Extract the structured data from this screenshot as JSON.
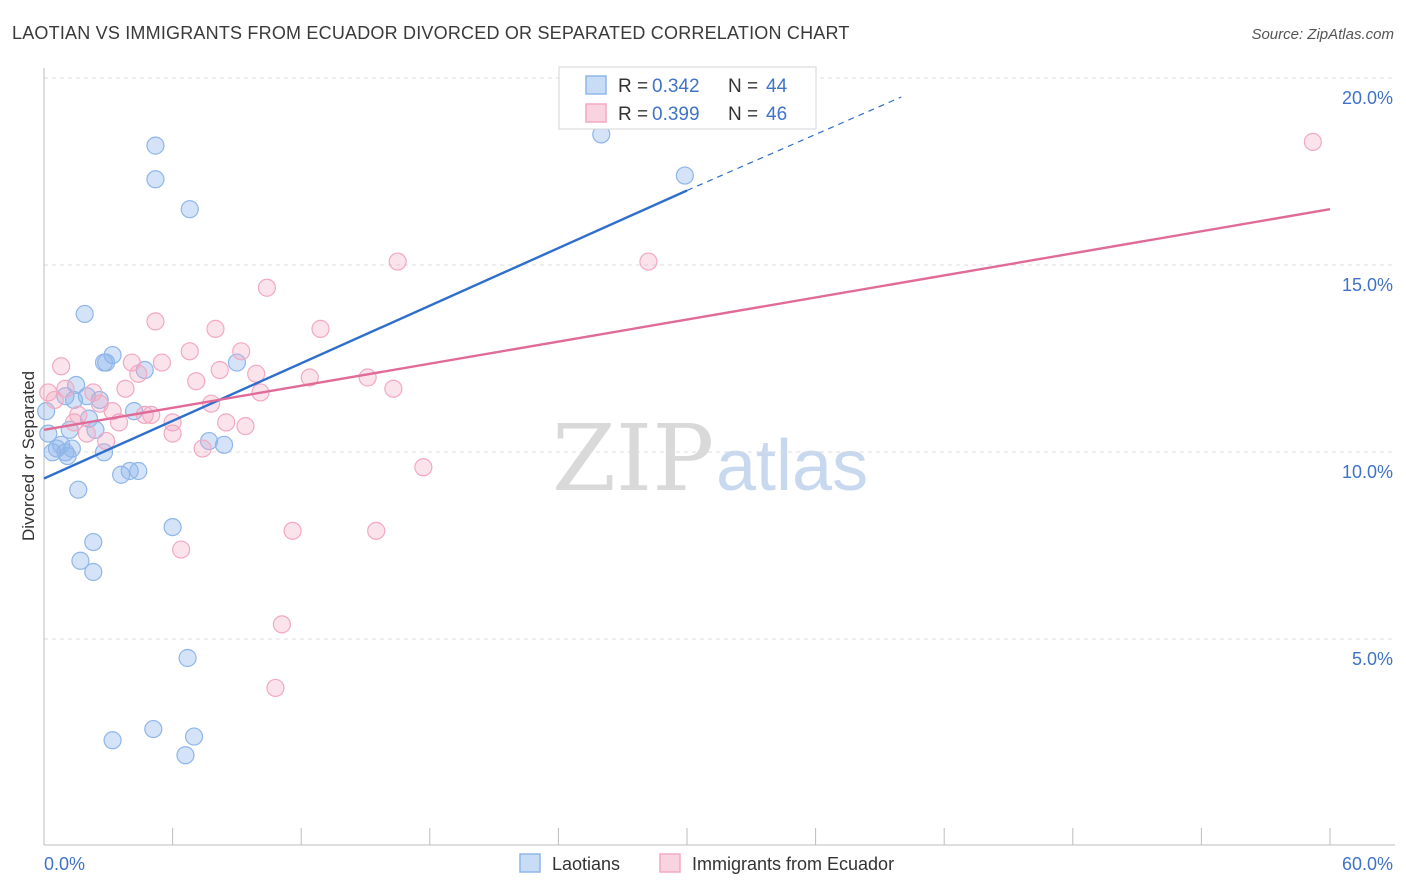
{
  "title": "LAOTIAN VS IMMIGRANTS FROM ECUADOR DIVORCED OR SEPARATED CORRELATION CHART",
  "source": "Source: ZipAtlas.com",
  "watermark": {
    "zip": "ZIP",
    "atlas": "atlas"
  },
  "legend": {
    "rows": [
      {
        "r_label": "R =",
        "r_value": "0.342",
        "n_label": "N =",
        "n_value": "44",
        "color": "#8fb6ea"
      },
      {
        "r_label": "R =",
        "r_value": "0.399",
        "n_label": "N =",
        "n_value": "46",
        "color": "#f2a9c2"
      }
    ]
  },
  "bottom_legend": [
    {
      "label": "Laotians",
      "color": "#8fb6ea"
    },
    {
      "label": "Immigrants from Ecuador",
      "color": "#f2a9c2"
    }
  ],
  "chart_data": {
    "type": "scatter",
    "title": "LAOTIAN VS IMMIGRANTS FROM ECUADOR DIVORCED OR SEPARATED CORRELATION CHART",
    "xlabel": "",
    "ylabel": "Divorced or Separated",
    "xlim": [
      0,
      60
    ],
    "ylim": [
      0,
      20.8
    ],
    "x_tick_labels": [
      "0.0%",
      "60.0%"
    ],
    "y_ticks": [
      5,
      10,
      15,
      20
    ],
    "y_tick_labels": [
      "5.0%",
      "10.0%",
      "15.0%",
      "20.0%"
    ],
    "grid": true,
    "legend_position": "top-center",
    "series": [
      {
        "name": "Laotians",
        "color": "#8fb6ea",
        "trend_color": "#2e6fcc",
        "trend": {
          "x_start": 0,
          "y_start": 9.8,
          "x_end": 30,
          "y_end": 17.5,
          "dash_to_x": 40,
          "dash_to_y": 20.0
        },
        "points": [
          [
            0.2,
            11.0
          ],
          [
            0.4,
            10.5
          ],
          [
            0.6,
            10.6
          ],
          [
            0.8,
            10.7
          ],
          [
            1.0,
            10.5
          ],
          [
            1.1,
            10.4
          ],
          [
            1.0,
            12.0
          ],
          [
            1.2,
            11.1
          ],
          [
            1.3,
            10.6
          ],
          [
            1.4,
            11.9
          ],
          [
            1.5,
            12.3
          ],
          [
            1.6,
            9.5
          ],
          [
            1.7,
            7.6
          ],
          [
            1.9,
            14.2
          ],
          [
            2.0,
            12.0
          ],
          [
            2.1,
            11.4
          ],
          [
            2.3,
            8.1
          ],
          [
            2.3,
            7.3
          ],
          [
            2.4,
            11.1
          ],
          [
            2.6,
            11.9
          ],
          [
            2.8,
            10.5
          ],
          [
            2.8,
            12.9
          ],
          [
            2.9,
            12.9
          ],
          [
            3.2,
            13.1
          ],
          [
            3.6,
            9.9
          ],
          [
            3.2,
            2.8
          ],
          [
            4.0,
            10.0
          ],
          [
            4.2,
            11.6
          ],
          [
            4.4,
            10.0
          ],
          [
            4.7,
            12.7
          ],
          [
            5.1,
            3.1
          ],
          [
            5.2,
            18.7
          ],
          [
            5.2,
            17.8
          ],
          [
            6.0,
            8.5
          ],
          [
            6.7,
            5.0
          ],
          [
            6.6,
            2.4
          ],
          [
            6.8,
            17.0
          ],
          [
            7.0,
            2.9
          ],
          [
            7.7,
            10.8
          ],
          [
            8.4,
            10.7
          ],
          [
            9.0,
            12.9
          ],
          [
            29.9,
            17.9
          ],
          [
            26.0,
            19.0
          ],
          [
            0.1,
            11.6
          ]
        ]
      },
      {
        "name": "Immigrants from Ecuador",
        "color": "#f2a9c2",
        "trend_color": "#e06b97",
        "trend": {
          "x_start": 0,
          "y_start": 11.1,
          "x_end": 60,
          "y_end": 17.0
        },
        "points": [
          [
            0.2,
            12.1
          ],
          [
            0.5,
            11.9
          ],
          [
            0.8,
            12.8
          ],
          [
            1.0,
            12.2
          ],
          [
            1.4,
            11.3
          ],
          [
            1.6,
            11.5
          ],
          [
            2.0,
            11.0
          ],
          [
            2.3,
            12.1
          ],
          [
            2.6,
            11.8
          ],
          [
            2.9,
            10.8
          ],
          [
            3.2,
            11.6
          ],
          [
            3.5,
            11.3
          ],
          [
            3.8,
            12.2
          ],
          [
            4.1,
            12.9
          ],
          [
            4.4,
            12.6
          ],
          [
            4.7,
            11.5
          ],
          [
            5.0,
            11.5
          ],
          [
            5.2,
            14.0
          ],
          [
            5.5,
            12.9
          ],
          [
            6.0,
            11.3
          ],
          [
            6.0,
            11.0
          ],
          [
            6.4,
            7.9
          ],
          [
            6.8,
            13.2
          ],
          [
            7.1,
            12.4
          ],
          [
            7.4,
            10.6
          ],
          [
            7.8,
            11.8
          ],
          [
            8.0,
            13.8
          ],
          [
            8.2,
            12.7
          ],
          [
            8.5,
            11.3
          ],
          [
            9.2,
            13.2
          ],
          [
            9.4,
            11.2
          ],
          [
            9.9,
            12.6
          ],
          [
            10.1,
            12.1
          ],
          [
            10.4,
            14.9
          ],
          [
            10.8,
            4.2
          ],
          [
            11.1,
            5.9
          ],
          [
            11.6,
            8.4
          ],
          [
            12.4,
            12.5
          ],
          [
            12.9,
            13.8
          ],
          [
            15.1,
            12.5
          ],
          [
            15.5,
            8.4
          ],
          [
            16.3,
            12.2
          ],
          [
            16.5,
            15.6
          ],
          [
            17.7,
            10.1
          ],
          [
            28.2,
            15.6
          ],
          [
            59.2,
            18.8
          ]
        ]
      }
    ]
  }
}
